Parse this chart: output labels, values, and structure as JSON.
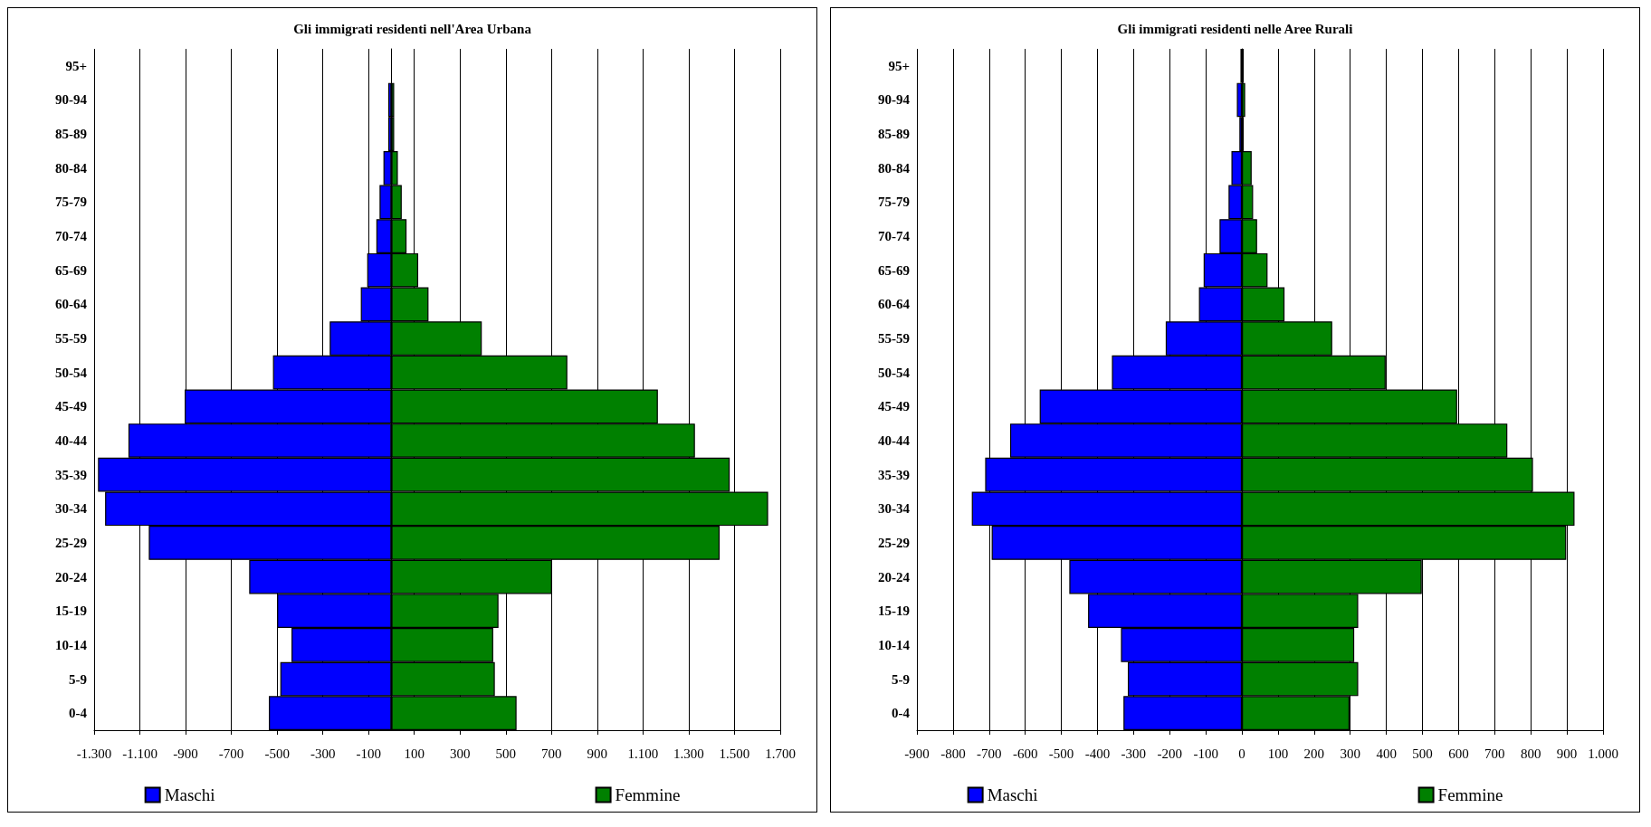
{
  "chart_data": [
    {
      "type": "bar",
      "orientation": "horizontal",
      "title": "Gli immigrati residenti nell'Area Urbana",
      "categories": [
        "95+",
        "90-94",
        "85-89",
        "80-84",
        "75-79",
        "70-74",
        "65-69",
        "60-64",
        "55-59",
        "50-54",
        "45-49",
        "40-44",
        "35-39",
        "30-34",
        "25-29",
        "20-24",
        "15-19",
        "10-14",
        "5-9",
        "0-4"
      ],
      "series": [
        {
          "name": "Maschi",
          "color": "#0000ff",
          "values": [
            null,
            -14,
            -14,
            -35,
            -52,
            -66,
            -106,
            -134,
            -270,
            -518,
            -904,
            -1150,
            -1283,
            -1252,
            -1061,
            -622,
            -500,
            -437,
            -486,
            -536
          ]
        },
        {
          "name": "Femmine",
          "color": "#008000",
          "values": [
            null,
            12,
            12,
            28,
            45,
            66,
            117,
            162,
            395,
            769,
            1165,
            1327,
            1479,
            1647,
            1435,
            702,
            468,
            445,
            452,
            547
          ]
        }
      ],
      "xlim": [
        -1300,
        1700
      ],
      "xticks": [
        {
          "value": -1300,
          "label": "-1.300"
        },
        {
          "value": -1100,
          "label": "-1.100"
        },
        -900,
        -700,
        -500,
        -300,
        -100,
        100,
        300,
        500,
        700,
        900,
        {
          "value": 1100,
          "label": "1.100"
        },
        {
          "value": 1300,
          "label": "1.300"
        },
        {
          "value": 1500,
          "label": "1.500"
        },
        {
          "value": 1700,
          "label": "1.700"
        }
      ],
      "grid": "x",
      "legend": "bottom",
      "stacked": true
    },
    {
      "type": "bar",
      "orientation": "horizontal",
      "title": "Gli immigrati residenti nelle Aree Rurali",
      "categories": [
        "95+",
        "90-94",
        "85-89",
        "80-84",
        "75-79",
        "70-74",
        "65-69",
        "60-64",
        "55-59",
        "50-54",
        "45-49",
        "40-44",
        "35-39",
        "30-34",
        "25-29",
        "20-24",
        "15-19",
        "10-14",
        "5-9",
        "0-4"
      ],
      "series": [
        {
          "name": "Maschi",
          "color": "#0000ff",
          "values": [
            -4,
            -14,
            -7,
            -29,
            -37,
            -62,
            -106,
            -119,
            -211,
            -360,
            -560,
            -642,
            -711,
            -748,
            -693,
            -478,
            -426,
            -335,
            -316,
            -328
          ]
        },
        {
          "name": "Femmine",
          "color": "#008000",
          "values": [
            5,
            9,
            5,
            27,
            31,
            42,
            71,
            118,
            250,
            398,
            596,
            735,
            806,
            921,
            898,
            498,
            322,
            311,
            322,
            298
          ]
        }
      ],
      "xlim": [
        -900,
        1000
      ],
      "xticks": [
        -900,
        -800,
        -700,
        -600,
        -500,
        -400,
        -300,
        -200,
        -100,
        0,
        100,
        200,
        300,
        400,
        500,
        600,
        700,
        800,
        900,
        {
          "value": 1000,
          "label": "1.000"
        }
      ],
      "grid": "x",
      "legend": "bottom",
      "stacked": true
    }
  ]
}
